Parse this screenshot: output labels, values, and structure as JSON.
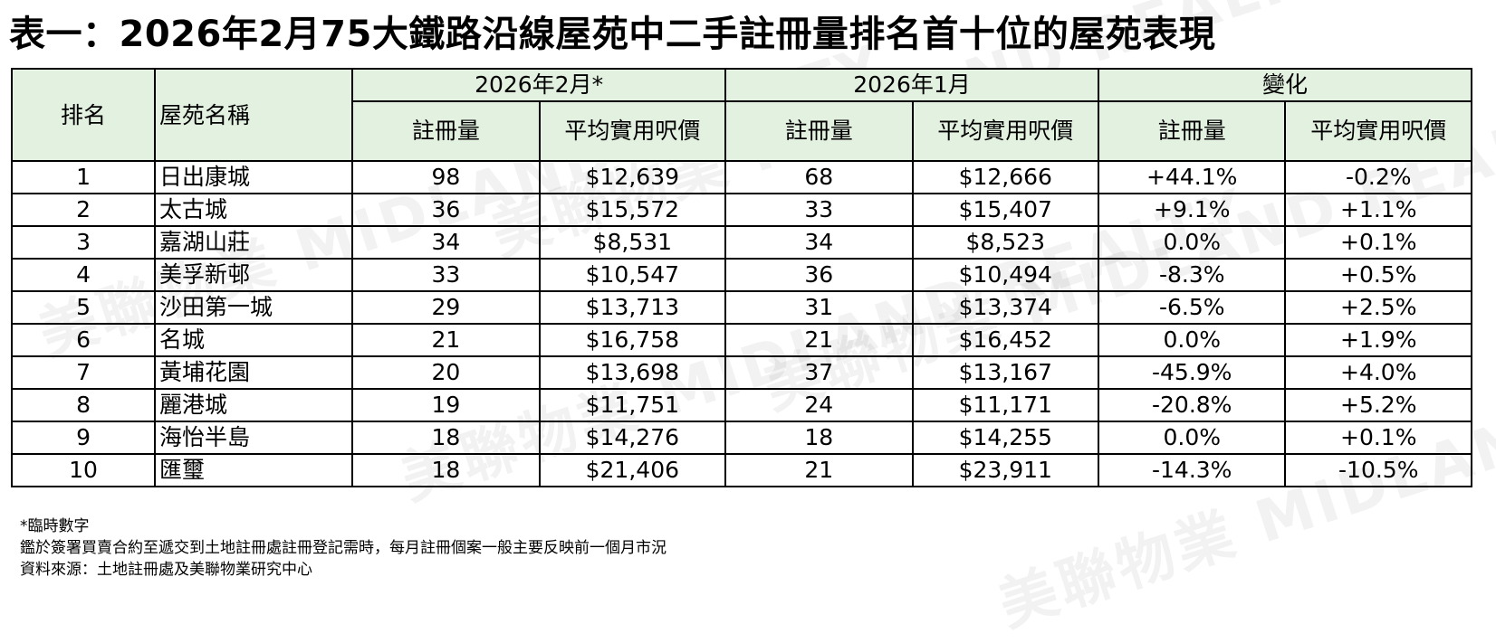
{
  "title": "表一：2026年2月75大鐵路沿線屋苑中二手註冊量排名首十位的屋苑表現",
  "watermark": "美聯物業 MIDLAND REALTY",
  "header": {
    "rank": "排名",
    "estate": "屋苑名稱",
    "period1": "2026年2月*",
    "period2": "2026年1月",
    "change": "變化",
    "registrations": "註冊量",
    "avg_price": "平均實用呎價"
  },
  "rows": [
    {
      "rank": "1",
      "estate": "日出康城",
      "feb_reg": "98",
      "feb_price": "$12,639",
      "jan_reg": "68",
      "jan_price": "$12,666",
      "chg_reg": "+44.1%",
      "chg_price": "-0.2%"
    },
    {
      "rank": "2",
      "estate": "太古城",
      "feb_reg": "36",
      "feb_price": "$15,572",
      "jan_reg": "33",
      "jan_price": "$15,407",
      "chg_reg": "+9.1%",
      "chg_price": "+1.1%"
    },
    {
      "rank": "3",
      "estate": "嘉湖山莊",
      "feb_reg": "34",
      "feb_price": "$8,531",
      "jan_reg": "34",
      "jan_price": "$8,523",
      "chg_reg": "0.0%",
      "chg_price": "+0.1%"
    },
    {
      "rank": "4",
      "estate": "美孚新邨",
      "feb_reg": "33",
      "feb_price": "$10,547",
      "jan_reg": "36",
      "jan_price": "$10,494",
      "chg_reg": "-8.3%",
      "chg_price": "+0.5%"
    },
    {
      "rank": "5",
      "estate": "沙田第一城",
      "feb_reg": "29",
      "feb_price": "$13,713",
      "jan_reg": "31",
      "jan_price": "$13,374",
      "chg_reg": "-6.5%",
      "chg_price": "+2.5%"
    },
    {
      "rank": "6",
      "estate": "名城",
      "feb_reg": "21",
      "feb_price": "$16,758",
      "jan_reg": "21",
      "jan_price": "$16,452",
      "chg_reg": "0.0%",
      "chg_price": "+1.9%"
    },
    {
      "rank": "7",
      "estate": "黃埔花園",
      "feb_reg": "20",
      "feb_price": "$13,698",
      "jan_reg": "37",
      "jan_price": "$13,167",
      "chg_reg": "-45.9%",
      "chg_price": "+4.0%"
    },
    {
      "rank": "8",
      "estate": "麗港城",
      "feb_reg": "19",
      "feb_price": "$11,751",
      "jan_reg": "24",
      "jan_price": "$11,171",
      "chg_reg": "-20.8%",
      "chg_price": "+5.2%"
    },
    {
      "rank": "9",
      "estate": "海怡半島",
      "feb_reg": "18",
      "feb_price": "$14,276",
      "jan_reg": "18",
      "jan_price": "$14,255",
      "chg_reg": "0.0%",
      "chg_price": "+0.1%"
    },
    {
      "rank": "10",
      "estate": "匯璽",
      "feb_reg": "18",
      "feb_price": "$21,406",
      "jan_reg": "21",
      "jan_price": "$23,911",
      "chg_reg": "-14.3%",
      "chg_price": "-10.5%"
    }
  ],
  "notes": [
    "*臨時數字",
    "鑑於簽署買賣合約至遞交到土地註冊處註冊登記需時，每月註冊個案一般主要反映前一個月市況",
    "資料來源：土地註冊處及美聯物業研究中心"
  ],
  "colors": {
    "header_bg": "#e3f1e0",
    "border": "#000000"
  }
}
